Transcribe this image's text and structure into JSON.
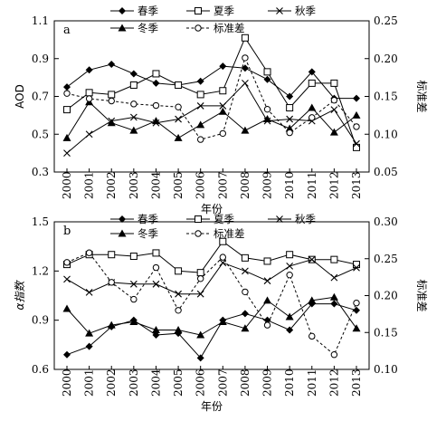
{
  "chart_data": [
    {
      "panel_label": "a",
      "type": "line",
      "ylabel": "AOD",
      "y2label": "标准差",
      "xlabel": "年份",
      "ylim": [
        0.3,
        1.1
      ],
      "yticks": [
        "0.3",
        "0.5",
        "0.7",
        "0.9",
        "1.1"
      ],
      "y2lim": [
        0.05,
        0.25
      ],
      "y2ticks": [
        "0.05",
        "0.10",
        "0.15",
        "0.20",
        "0.25"
      ],
      "x": [
        "2000",
        "2001",
        "2002",
        "2003",
        "2004",
        "2005",
        "2006",
        "2007",
        "2008",
        "2009",
        "2010",
        "2011",
        "2012",
        "2013"
      ],
      "legend": "top",
      "series": [
        {
          "name": "春季",
          "axis": "left",
          "marker": "diamond-filled",
          "values": [
            0.75,
            0.84,
            0.87,
            0.82,
            0.77,
            0.76,
            0.78,
            0.86,
            0.85,
            0.79,
            0.7,
            0.83,
            0.69,
            0.69
          ]
        },
        {
          "name": "夏季",
          "axis": "left",
          "marker": "square-open",
          "values": [
            0.63,
            0.72,
            0.71,
            0.76,
            0.82,
            0.76,
            0.71,
            0.73,
            1.01,
            0.83,
            0.64,
            0.77,
            0.77,
            0.43
          ]
        },
        {
          "name": "秋季",
          "axis": "left",
          "marker": "x",
          "values": [
            0.4,
            0.5,
            0.57,
            0.59,
            0.56,
            0.58,
            0.65,
            0.65,
            0.77,
            0.57,
            0.58,
            0.57,
            0.63,
            0.45
          ]
        },
        {
          "name": "冬季",
          "axis": "left",
          "marker": "triangle-filled",
          "values": [
            0.48,
            0.67,
            0.56,
            0.52,
            0.57,
            0.48,
            0.55,
            0.62,
            0.52,
            0.58,
            0.53,
            0.64,
            0.51,
            0.6
          ]
        },
        {
          "name": "标准差",
          "axis": "right",
          "marker": "circle-open",
          "style": "dashed",
          "values": [
            0.154,
            0.147,
            0.144,
            0.14,
            0.138,
            0.136,
            0.093,
            0.101,
            0.201,
            0.133,
            0.102,
            0.122,
            0.145,
            0.11
          ]
        }
      ]
    },
    {
      "panel_label": "b",
      "type": "line",
      "ylabel": "α指数",
      "y2label": "标准差",
      "xlabel": "年份",
      "ylim": [
        0.6,
        1.5
      ],
      "yticks": [
        "0.6",
        "0.9",
        "1.2",
        "1.5"
      ],
      "y2lim": [
        0.1,
        0.3
      ],
      "y2ticks": [
        "0.10",
        "0.15",
        "0.20",
        "0.25",
        "0.30"
      ],
      "x": [
        "2000",
        "2001",
        "2002",
        "2003",
        "2004",
        "2005",
        "2006",
        "2007",
        "2008",
        "2009",
        "2010",
        "2011",
        "2012",
        "2013"
      ],
      "legend": "top",
      "series": [
        {
          "name": "春季",
          "axis": "left",
          "marker": "diamond-filled",
          "values": [
            0.69,
            0.74,
            0.86,
            0.9,
            0.81,
            0.82,
            0.67,
            0.9,
            0.94,
            0.9,
            0.84,
            1.0,
            1.0,
            0.96
          ]
        },
        {
          "name": "夏季",
          "axis": "left",
          "marker": "square-open",
          "values": [
            1.24,
            1.3,
            1.3,
            1.29,
            1.31,
            1.2,
            1.19,
            1.38,
            1.28,
            1.26,
            1.3,
            1.27,
            1.27,
            1.24
          ]
        },
        {
          "name": "秋季",
          "axis": "left",
          "marker": "x",
          "values": [
            1.15,
            1.07,
            1.13,
            1.12,
            1.12,
            1.06,
            1.06,
            1.25,
            1.2,
            1.14,
            1.23,
            1.27,
            1.16,
            1.22
          ]
        },
        {
          "name": "冬季",
          "axis": "left",
          "marker": "triangle-filled",
          "values": [
            0.97,
            0.82,
            0.87,
            0.89,
            0.84,
            0.84,
            0.81,
            0.89,
            0.85,
            1.02,
            0.92,
            1.02,
            1.04,
            0.85
          ]
        },
        {
          "name": "标准差",
          "axis": "right",
          "marker": "circle-open",
          "style": "dashed",
          "values": [
            0.245,
            0.258,
            0.218,
            0.195,
            0.238,
            0.18,
            0.223,
            0.252,
            0.205,
            0.16,
            0.228,
            0.145,
            0.12,
            0.19
          ]
        }
      ]
    }
  ]
}
